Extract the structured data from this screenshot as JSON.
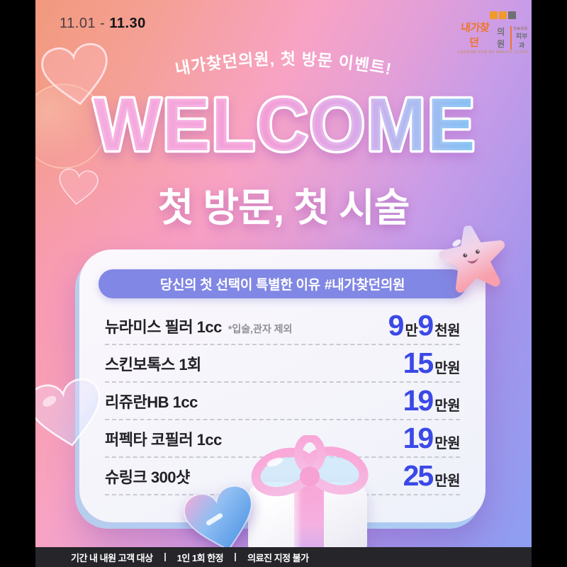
{
  "header": {
    "date_light": "11.01 -",
    "date_bold": "11.30"
  },
  "logo": {
    "brand": "내가찾던",
    "clinic": "의원",
    "dept_label": "진료과목",
    "dept": "피부과",
    "tagline": "LOOKING FOR MY BEAUTY CLINIC"
  },
  "hero": {
    "arc_regular": "내가찾던의원, ",
    "arc_bold": "첫 방문 이벤트!",
    "title": "WELCOME",
    "subtitle_regular": "첫 방문, ",
    "subtitle_bold": "첫 시술"
  },
  "card": {
    "header_regular": "당신의 첫 선택이 특별한 이유",
    "header_bold": "#내가찾던의원",
    "rows": [
      {
        "name": "뉴라미스 필러 1cc",
        "note": "*입술,관자 제외",
        "price_parts": [
          {
            "num": "9",
            "unit": "만"
          },
          {
            "num": "9",
            "unit": "천원"
          }
        ]
      },
      {
        "name": "스킨보톡스 1회",
        "note": "",
        "price_parts": [
          {
            "num": "15",
            "unit": "만원"
          }
        ]
      },
      {
        "name": "리쥬란HB 1cc",
        "note": "",
        "price_parts": [
          {
            "num": "19",
            "unit": "만원"
          }
        ]
      },
      {
        "name": "퍼펙타 코필러 1cc",
        "note": "",
        "price_parts": [
          {
            "num": "19",
            "unit": "만원"
          }
        ]
      },
      {
        "name": "슈링크 300샷",
        "note": "",
        "price_parts": [
          {
            "num": "25",
            "unit": "만원"
          }
        ]
      }
    ]
  },
  "footer": {
    "items": [
      "기간 내 내원 고객 대상",
      "1인 1회 한정",
      "의료진 지정 불가"
    ]
  },
  "colors": {
    "accent_blue": "#3b49e6",
    "pill_purple": "#8187e4",
    "footer_bg": "#25252a",
    "ink": "#222226",
    "brand_orange": "#f0752a"
  }
}
